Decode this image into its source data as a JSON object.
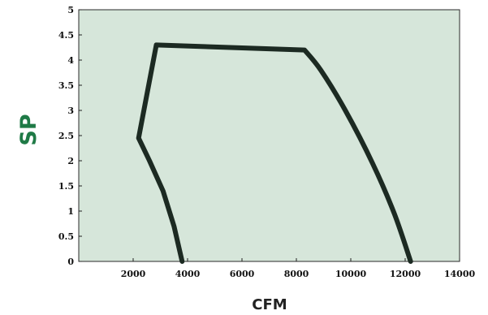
{
  "chart_data": {
    "type": "line",
    "title": "",
    "xlabel": "CFM",
    "ylabel": "SP",
    "xlim": [
      0,
      14000
    ],
    "ylim": [
      0,
      5
    ],
    "xticks": [
      2000,
      4000,
      6000,
      8000,
      10000,
      12000,
      14000
    ],
    "xtick_labels": [
      "2000",
      "4000",
      "6000",
      "8000",
      "10000",
      "12000",
      "14000"
    ],
    "yticks": [
      0,
      0.5,
      1,
      1.5,
      2,
      2.5,
      3,
      3.5,
      4,
      4.5,
      5
    ],
    "ytick_labels": [
      "0",
      "0.5",
      "1",
      "1.5",
      "2",
      "2.5",
      "3",
      "3.5",
      "4",
      "4.5",
      "5"
    ],
    "grid": false,
    "colors": {
      "plot_bg": "#d6e6da",
      "line": "#1c2a22",
      "ylabel": "#1f7a46"
    },
    "series": [
      {
        "x": [
          3800,
          3500,
          3100,
          2600,
          2200,
          2850,
          8300,
          8900,
          9800,
          10800,
          11600,
          12200
        ],
        "y": [
          0,
          0.7,
          1.4,
          2.0,
          2.45,
          4.3,
          4.2,
          3.8,
          3.0,
          1.95,
          0.95,
          0
        ]
      }
    ]
  }
}
